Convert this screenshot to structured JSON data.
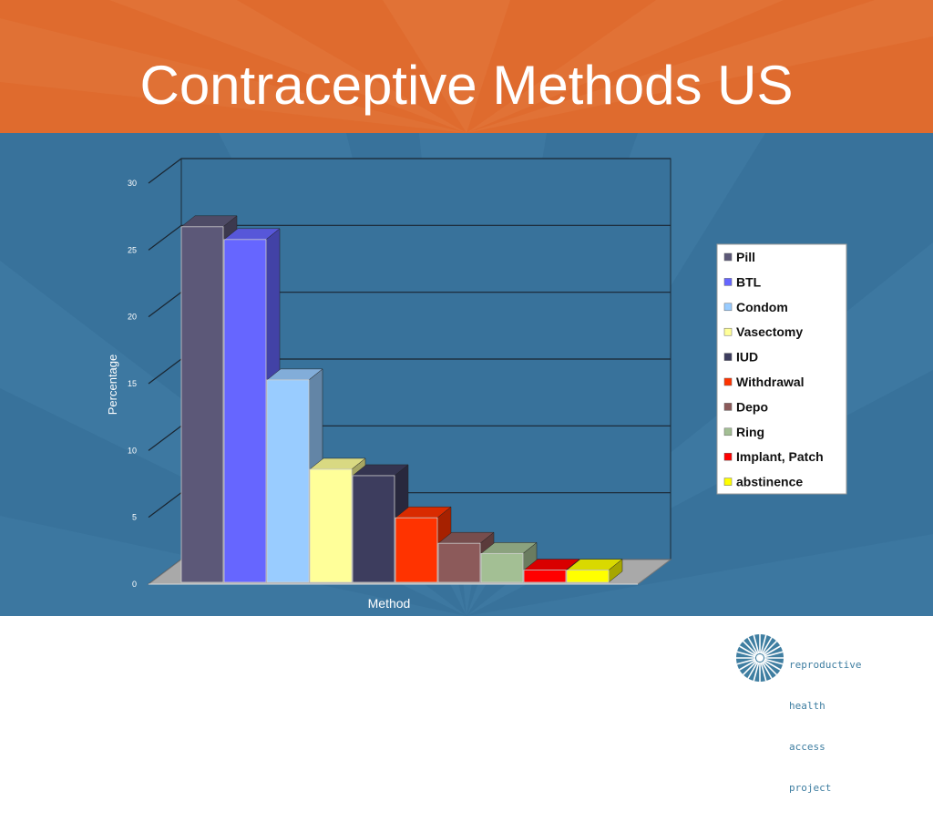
{
  "slide": {
    "title": "Contraceptive Methods US",
    "colors": {
      "header": "#df6b2e",
      "panel": "#38729b",
      "text_on_dark": "#ffffff"
    }
  },
  "chart_data": {
    "type": "bar",
    "style": "3d",
    "title": "",
    "xlabel": "Method",
    "ylabel": "Percentage",
    "ylim": [
      0,
      30
    ],
    "yticks": [
      0,
      5,
      10,
      15,
      20,
      25,
      30
    ],
    "grid": true,
    "legend_placement": "right",
    "series": [
      {
        "name": "Pill",
        "value": 28,
        "color": "#5c5878"
      },
      {
        "name": "BTL",
        "value": 27,
        "color": "#6666ff"
      },
      {
        "name": "Condom",
        "value": 16,
        "color": "#99ccff"
      },
      {
        "name": "Vasectomy",
        "value": 9,
        "color": "#ffff99"
      },
      {
        "name": "IUD",
        "value": 8.5,
        "color": "#3d3d5e"
      },
      {
        "name": "Withdrawal",
        "value": 5.2,
        "color": "#ff3300"
      },
      {
        "name": "Depo",
        "value": 3.2,
        "color": "#8c5a5a"
      },
      {
        "name": "Ring",
        "value": 2.4,
        "color": "#a3bf94"
      },
      {
        "name": "Implant, Patch",
        "value": 1.1,
        "color": "#ff0000"
      },
      {
        "name": "abstinence",
        "value": 1.1,
        "color": "#ffff00"
      }
    ]
  },
  "footer": {
    "logo_lines": [
      "reproductive",
      "health",
      "access",
      "project"
    ],
    "logo_color": "#3f7ea1"
  }
}
